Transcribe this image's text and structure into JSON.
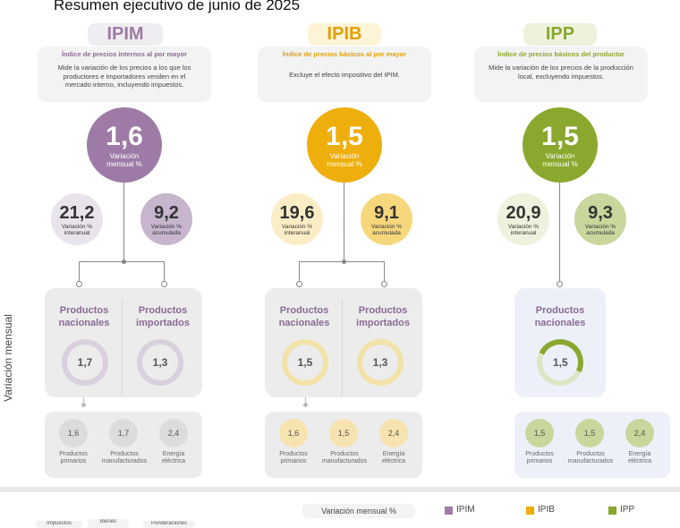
{
  "title": "Resumen ejecutivo de junio de 2025",
  "side_label": "Variación mensual",
  "colors": {
    "ipim": "#9d7ba6",
    "ipib": "#eeae0c",
    "ipp": "#8aa82d"
  },
  "ipim": {
    "name": "IPIM",
    "subtitle": "Índice de precios internos al por mayor",
    "description": "Mide la variación de los precios a los que los productores e importadores venden en el mercado interno, incluyendo impuestos.",
    "monthly": "1,6",
    "monthly_caption": "Variación mensual %",
    "yoy": "21,2",
    "yoy_caption": "Variación % interanual",
    "ytd": "9,2",
    "ytd_caption": "Variación % acumulada",
    "p1_title": "Productos nacionales",
    "p1_value": "1,7",
    "p2_title": "Productos importados",
    "p2_value": "1,3",
    "s1_value": "1,6",
    "s1_label": "Productos primarios",
    "s2_value": "1,7",
    "s2_label": "Productos manufacturados",
    "s3_value": "2,4",
    "s3_label": "Energía eléctrica"
  },
  "ipib": {
    "name": "IPIB",
    "subtitle": "Índice de precios básicos al por mayor",
    "description": "Excluye el efecto impositivo del IPIM.",
    "monthly": "1,5",
    "monthly_caption": "Variación mensual %",
    "yoy": "19,6",
    "yoy_caption": "Variación % interanual",
    "ytd": "9,1",
    "ytd_caption": "Variación % acumulada",
    "p1_title": "Productos nacionales",
    "p1_value": "1,5",
    "p2_title": "Productos importados",
    "p2_value": "1,3",
    "s1_value": "1,6",
    "s1_label": "Productos primarios",
    "s2_value": "1,5",
    "s2_label": "Productos manufacturados",
    "s3_value": "2,4",
    "s3_label": "Energía eléctrica"
  },
  "ipp": {
    "name": "IPP",
    "subtitle": "Índice de precios básicos del productor",
    "description": "Mide la variación de los precios de la producción local, excluyendo impuestos.",
    "monthly": "1,5",
    "monthly_caption": "Variación mensual %",
    "yoy": "20,9",
    "yoy_caption": "Variación % interanual",
    "ytd": "9,3",
    "ytd_caption": "Variación % acumulada",
    "p1_title": "Productos nacionales",
    "p1_value": "1,5",
    "s1_value": "1,5",
    "s1_label": "Productos primarios",
    "s2_value": "1,5",
    "s2_label": "Productos manufacturados",
    "s3_value": "2,4",
    "s3_label": "Energía eléctrica"
  },
  "legend": {
    "box": "Variación mensual %",
    "ipim": "IPIM",
    "ipib": "IPIB",
    "ipp": "IPP"
  },
  "footer_tabs": [
    "Impuestos",
    "Bienes",
    "Ponderaciones"
  ]
}
